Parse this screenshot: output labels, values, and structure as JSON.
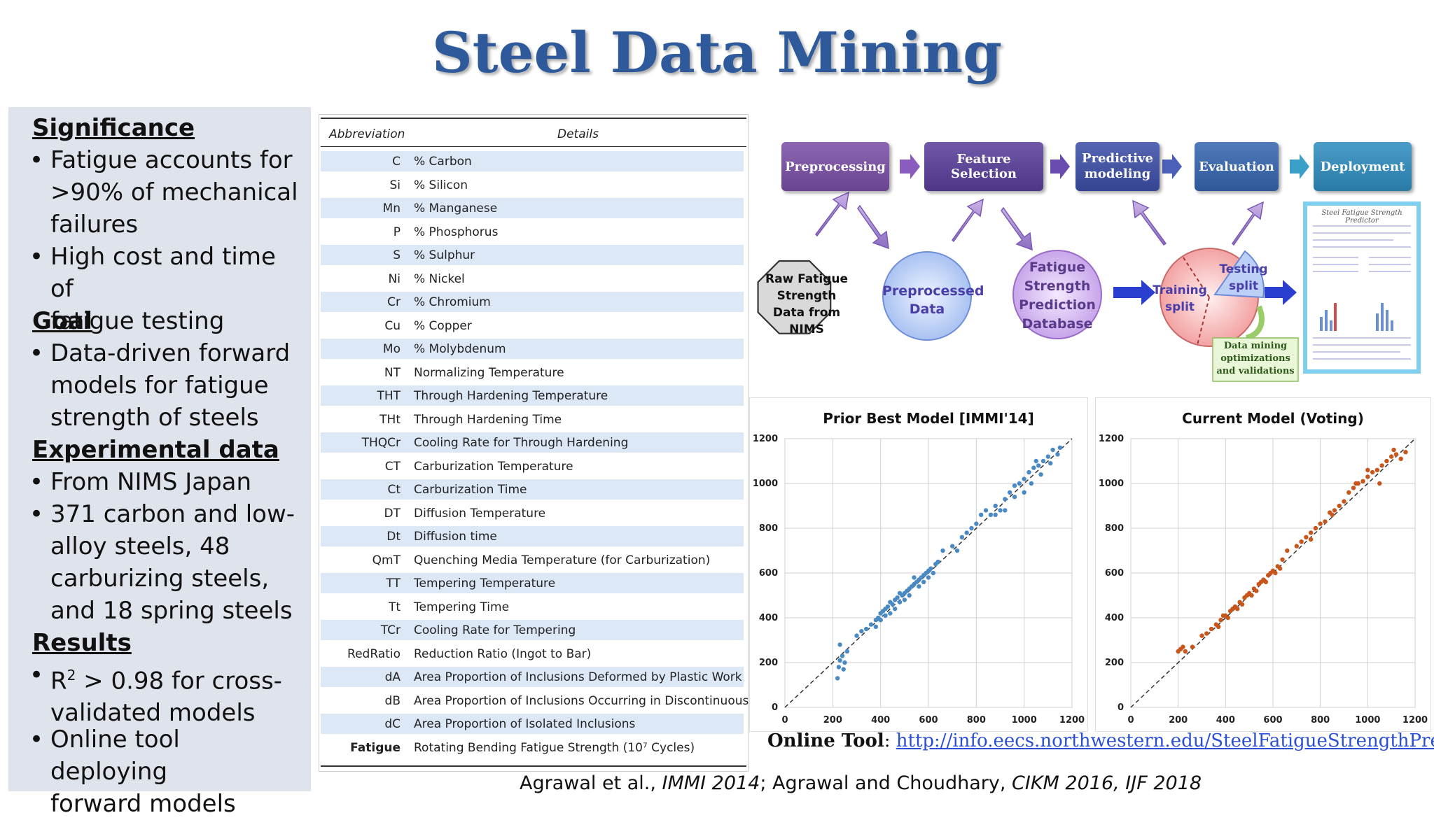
{
  "title": "Steel Data Mining",
  "left_panel": {
    "significance_heading": "Significance",
    "significance_b1_l1": "Fatigue accounts for",
    "significance_b1_l2": ">90% of mechanical",
    "significance_b1_l3": "failures",
    "significance_b2_l1": "High cost and time of",
    "significance_b2_l2": "fatigue testing",
    "goal_heading": "Goal",
    "goal_b1_l1": "Data-driven forward",
    "goal_b1_l2": "models for fatigue",
    "goal_b1_l3": "strength of steels",
    "exp_heading": "Experimental data",
    "exp_b1_l1": "From NIMS Japan",
    "exp_b2_l1": "371 carbon and low-",
    "exp_b2_l2": "alloy steels, 48",
    "exp_b2_l3": "carburizing steels,",
    "exp_b2_l4": "and 18 spring steels",
    "results_heading": "Results",
    "results_b1_l1a": "R",
    "results_b1_sup": "2",
    "results_b1_l1b": " > 0.98 for cross-",
    "results_b1_l2": "validated models",
    "results_b2_l1": "Online tool deploying",
    "results_b2_l2": "forward models",
    "bullet": "•"
  },
  "table": {
    "col_abbr": "Abbreviation",
    "col_details": "Details",
    "rows": [
      {
        "abbr": "C",
        "detail": "% Carbon"
      },
      {
        "abbr": "Si",
        "detail": "% Silicon"
      },
      {
        "abbr": "Mn",
        "detail": "% Manganese"
      },
      {
        "abbr": "P",
        "detail": "% Phosphorus"
      },
      {
        "abbr": "S",
        "detail": "% Sulphur"
      },
      {
        "abbr": "Ni",
        "detail": "% Nickel"
      },
      {
        "abbr": "Cr",
        "detail": "% Chromium"
      },
      {
        "abbr": "Cu",
        "detail": "% Copper"
      },
      {
        "abbr": "Mo",
        "detail": "% Molybdenum"
      },
      {
        "abbr": "NT",
        "detail": "Normalizing Temperature"
      },
      {
        "abbr": "THT",
        "detail": "Through Hardening Temperature"
      },
      {
        "abbr": "THt",
        "detail": "Through Hardening Time"
      },
      {
        "abbr": "THQCr",
        "detail": "Cooling Rate for Through Hardening"
      },
      {
        "abbr": "CT",
        "detail": "Carburization Temperature"
      },
      {
        "abbr": "Ct",
        "detail": "Carburization Time"
      },
      {
        "abbr": "DT",
        "detail": "Diffusion Temperature"
      },
      {
        "abbr": "Dt",
        "detail": "Diffusion time"
      },
      {
        "abbr": "QmT",
        "detail": "Quenching Media Temperature (for Carburization)"
      },
      {
        "abbr": "TT",
        "detail": "Tempering Temperature"
      },
      {
        "abbr": "Tt",
        "detail": "Tempering Time"
      },
      {
        "abbr": "TCr",
        "detail": "Cooling Rate for Tempering"
      },
      {
        "abbr": "RedRatio",
        "detail": "Reduction Ratio (Ingot to Bar)"
      },
      {
        "abbr": "dA",
        "detail": "Area Proportion of Inclusions Deformed by Plastic Work"
      },
      {
        "abbr": "dB",
        "detail": "Area Proportion of Inclusions Occurring in Discontinuous Array"
      },
      {
        "abbr": "dC",
        "detail": "Area Proportion of Isolated Inclusions"
      },
      {
        "abbr": "Fatigue",
        "detail": "Rotating Bending Fatigue Strength (10⁷ Cycles)"
      }
    ]
  },
  "pipeline": {
    "steps": [
      "Preprocessing",
      "Feature Selection",
      "Predictive modeling",
      "Evaluation",
      "Deployment"
    ],
    "step_colors": [
      "#7b4fa6",
      "#5a3f9c",
      "#3d4fa8",
      "#3566b0",
      "#2f8ec0"
    ],
    "raw_data": [
      "Raw Fatigue",
      "Strength",
      "Data from",
      "NIMS"
    ],
    "preprocessed": [
      "Preprocessed",
      "Data"
    ],
    "database": [
      "Fatigue",
      "Strength",
      "Prediction",
      "Database"
    ],
    "training": [
      "Training",
      "split"
    ],
    "testing": [
      "Testing",
      "split"
    ],
    "dm_note": [
      "Data mining",
      "optimizations",
      "and validations"
    ],
    "thumb_title": "Steel Fatigue Strength Predictor"
  },
  "chart_data": [
    {
      "type": "scatter",
      "title": "Prior Best Model [IMMI'14]",
      "xlim": [
        0,
        1200
      ],
      "ylim": [
        0,
        1200
      ],
      "xticks": [
        0,
        200,
        400,
        600,
        800,
        1000,
        1200
      ],
      "yticks": [
        0,
        200,
        400,
        600,
        800,
        1000,
        1200
      ],
      "grid": true,
      "color": "#4a8ac4",
      "points": [
        [
          220,
          130
        ],
        [
          225,
          180
        ],
        [
          230,
          210
        ],
        [
          240,
          230
        ],
        [
          250,
          200
        ],
        [
          230,
          280
        ],
        [
          245,
          170
        ],
        [
          260,
          250
        ],
        [
          300,
          320
        ],
        [
          320,
          340
        ],
        [
          340,
          350
        ],
        [
          360,
          370
        ],
        [
          380,
          390
        ],
        [
          390,
          400
        ],
        [
          400,
          420
        ],
        [
          410,
          430
        ],
        [
          420,
          410
        ],
        [
          430,
          450
        ],
        [
          440,
          470
        ],
        [
          450,
          460
        ],
        [
          460,
          480
        ],
        [
          470,
          490
        ],
        [
          480,
          470
        ],
        [
          490,
          500
        ],
        [
          500,
          510
        ],
        [
          510,
          520
        ],
        [
          520,
          530
        ],
        [
          530,
          540
        ],
        [
          540,
          550
        ],
        [
          550,
          560
        ],
        [
          560,
          570
        ],
        [
          570,
          580
        ],
        [
          580,
          590
        ],
        [
          590,
          600
        ],
        [
          600,
          610
        ],
        [
          610,
          620
        ],
        [
          620,
          600
        ],
        [
          630,
          640
        ],
        [
          640,
          650
        ],
        [
          560,
          540
        ],
        [
          520,
          500
        ],
        [
          500,
          480
        ],
        [
          480,
          510
        ],
        [
          460,
          440
        ],
        [
          440,
          420
        ],
        [
          420,
          440
        ],
        [
          400,
          390
        ],
        [
          380,
          360
        ],
        [
          540,
          580
        ],
        [
          580,
          560
        ],
        [
          600,
          580
        ],
        [
          660,
          700
        ],
        [
          700,
          720
        ],
        [
          720,
          700
        ],
        [
          740,
          760
        ],
        [
          760,
          780
        ],
        [
          780,
          800
        ],
        [
          800,
          820
        ],
        [
          820,
          860
        ],
        [
          840,
          880
        ],
        [
          860,
          860
        ],
        [
          880,
          900
        ],
        [
          900,
          880
        ],
        [
          920,
          930
        ],
        [
          940,
          960
        ],
        [
          960,
          990
        ],
        [
          980,
          1000
        ],
        [
          1000,
          1020
        ],
        [
          1020,
          1050
        ],
        [
          1040,
          1070
        ],
        [
          1060,
          1080
        ],
        [
          1080,
          1100
        ],
        [
          1100,
          1120
        ],
        [
          1120,
          1150
        ],
        [
          1140,
          1130
        ],
        [
          1150,
          1160
        ],
        [
          1000,
          960
        ],
        [
          960,
          940
        ],
        [
          920,
          880
        ],
        [
          880,
          860
        ],
        [
          1050,
          1100
        ],
        [
          1070,
          1040
        ],
        [
          1030,
          1000
        ],
        [
          1110,
          1090
        ]
      ]
    },
    {
      "type": "scatter",
      "title": "Current Model (Voting)",
      "xlim": [
        0,
        1200
      ],
      "ylim": [
        0,
        1200
      ],
      "xticks": [
        0,
        200,
        400,
        600,
        800,
        1000,
        1200
      ],
      "yticks": [
        0,
        200,
        400,
        600,
        800,
        1000,
        1200
      ],
      "grid": true,
      "color": "#c8551a",
      "points": [
        [
          200,
          250
        ],
        [
          210,
          260
        ],
        [
          220,
          270
        ],
        [
          230,
          250
        ],
        [
          260,
          270
        ],
        [
          300,
          320
        ],
        [
          320,
          330
        ],
        [
          340,
          350
        ],
        [
          360,
          370
        ],
        [
          380,
          390
        ],
        [
          400,
          410
        ],
        [
          420,
          430
        ],
        [
          440,
          450
        ],
        [
          460,
          470
        ],
        [
          480,
          490
        ],
        [
          500,
          510
        ],
        [
          520,
          530
        ],
        [
          540,
          550
        ],
        [
          560,
          570
        ],
        [
          580,
          590
        ],
        [
          600,
          610
        ],
        [
          620,
          630
        ],
        [
          370,
          360
        ],
        [
          390,
          410
        ],
        [
          410,
          400
        ],
        [
          430,
          440
        ],
        [
          450,
          440
        ],
        [
          470,
          460
        ],
        [
          490,
          500
        ],
        [
          510,
          500
        ],
        [
          530,
          520
        ],
        [
          550,
          560
        ],
        [
          570,
          560
        ],
        [
          590,
          600
        ],
        [
          610,
          600
        ],
        [
          630,
          620
        ],
        [
          640,
          660
        ],
        [
          660,
          700
        ],
        [
          700,
          720
        ],
        [
          720,
          740
        ],
        [
          740,
          760
        ],
        [
          760,
          780
        ],
        [
          780,
          800
        ],
        [
          800,
          820
        ],
        [
          820,
          830
        ],
        [
          840,
          870
        ],
        [
          860,
          880
        ],
        [
          880,
          900
        ],
        [
          900,
          920
        ],
        [
          920,
          960
        ],
        [
          940,
          980
        ],
        [
          960,
          1000
        ],
        [
          980,
          1010
        ],
        [
          1000,
          1030
        ],
        [
          1020,
          1050
        ],
        [
          1040,
          1060
        ],
        [
          1060,
          1080
        ],
        [
          1080,
          1100
        ],
        [
          1100,
          1120
        ],
        [
          1120,
          1130
        ],
        [
          1140,
          1110
        ],
        [
          1160,
          1140
        ],
        [
          1000,
          1060
        ],
        [
          950,
          1000
        ],
        [
          850,
          860
        ],
        [
          760,
          750
        ],
        [
          1050,
          1000
        ],
        [
          1110,
          1150
        ]
      ]
    }
  ],
  "online": {
    "label": "Online Tool",
    "sep": ": ",
    "url": "http://info.eecs.northwestern.edu/SteelFatigueStrengthPredictor"
  },
  "citation": {
    "p1": "Agrawal et al., ",
    "p2": "IMMI 2014",
    "p3": "; Agrawal and Choudhary, ",
    "p4": "CIKM 2016, IJF 2018"
  }
}
